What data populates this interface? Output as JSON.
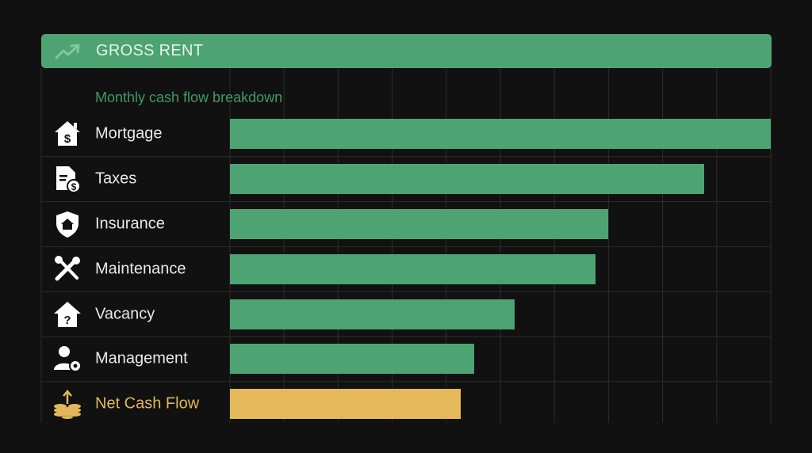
{
  "header": {
    "title": "GROSS RENT",
    "icon": "trending-up-icon"
  },
  "subtitle": "Monthly cash flow breakdown",
  "colors": {
    "expense": "#4ea372",
    "net": "#e5b95a",
    "grid": "#2a2d2a",
    "background": "#111111"
  },
  "chart_data": {
    "type": "bar",
    "orientation": "horizontal",
    "title": "GROSS RENT",
    "subtitle": "Monthly cash flow breakdown",
    "categories": [
      "Mortgage",
      "Taxes",
      "Insurance",
      "Maintenance",
      "Vacancy",
      "Management",
      "Net Cash Flow"
    ],
    "icons": [
      "house-dollar-icon",
      "document-dollar-icon",
      "shield-house-icon",
      "wrench-screwdriver-icon",
      "house-question-icon",
      "user-gear-icon",
      "coins-up-icon"
    ],
    "values": [
      1.0,
      0.877,
      0.7,
      0.676,
      0.526,
      0.452,
      0.427
    ],
    "value_unit": "fraction of largest bar (no values printed)",
    "xlim": [
      0,
      1
    ],
    "grid": true
  }
}
